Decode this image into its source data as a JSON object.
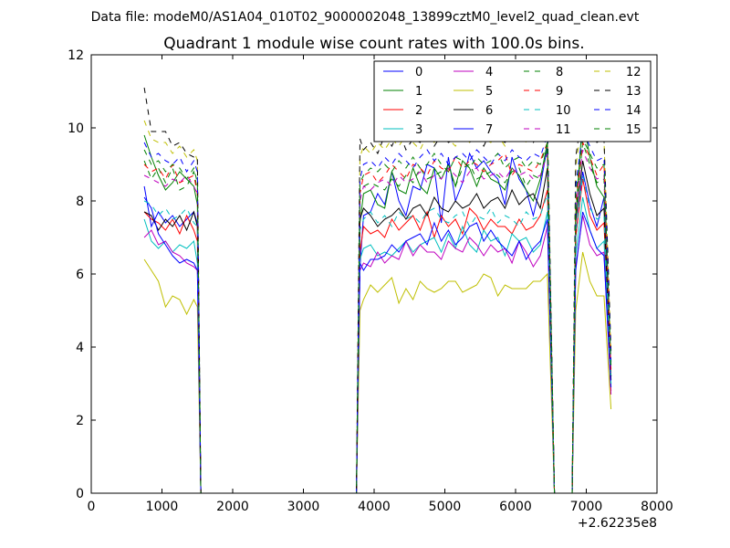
{
  "suptitle": "Data file: modeM0/AS1A04_010T02_9000002048_13899cztM0_level2_quad_clean.evt",
  "chart_data": {
    "type": "line",
    "title": "Quadrant 1 module wise count rates with 100.0s bins.",
    "xlabel": "",
    "ylabel": "",
    "x_offset_label": "+2.62235e8",
    "xlim": [
      0,
      8000
    ],
    "ylim": [
      0,
      12
    ],
    "xticks": [
      0,
      1000,
      2000,
      3000,
      4000,
      5000,
      6000,
      7000,
      8000
    ],
    "xtick_labels": [
      "0",
      "1000",
      "2000",
      "3000",
      "4000",
      "5000",
      "6000",
      "7000",
      "8000"
    ],
    "yticks": [
      0,
      2,
      4,
      6,
      8,
      10,
      12
    ],
    "ytick_labels": [
      "0",
      "2",
      "4",
      "6",
      "8",
      "10",
      "12"
    ],
    "grid": false,
    "legend_position": "top-right",
    "x": [
      750,
      850,
      950,
      1050,
      1150,
      1250,
      1350,
      1450,
      1500,
      1550,
      1600,
      3600,
      3650,
      3700,
      3750,
      3800,
      3850,
      3950,
      4050,
      4150,
      4250,
      4350,
      4450,
      4550,
      4650,
      4750,
      4850,
      4950,
      5050,
      5150,
      5250,
      5350,
      5450,
      5550,
      5650,
      5750,
      5850,
      5950,
      6050,
      6150,
      6250,
      6350,
      6450,
      6550,
      6620,
      6650,
      6700,
      6720,
      6800,
      6850,
      6950,
      7050,
      7150,
      7250,
      7350
    ],
    "series": [
      {
        "name": "0",
        "color": "#0000ff",
        "dash": "solid",
        "values": [
          8.4,
          7.3,
          7.7,
          7.4,
          7.6,
          7.3,
          7.5,
          7.7,
          7.4,
          0,
          0,
          0,
          0,
          0,
          0,
          6.2,
          7.6,
          7.7,
          8.2,
          7.9,
          8.8,
          8.0,
          7.6,
          8.4,
          8.3,
          9.0,
          8.9,
          7.4,
          9.2,
          8.0,
          8.5,
          9.3,
          8.9,
          9.1,
          8.8,
          8.6,
          7.9,
          9.2,
          8.6,
          8.3,
          7.6,
          8.4,
          9.5,
          0,
          0,
          0,
          0,
          0,
          0,
          7.0,
          8.8,
          7.9,
          7.3,
          8.1,
          3.2
        ]
      },
      {
        "name": "1",
        "color": "#008000",
        "dash": "solid",
        "values": [
          9.8,
          9.2,
          8.7,
          8.3,
          8.5,
          8.8,
          8.6,
          8.4,
          7.9,
          0,
          0,
          0,
          0,
          0,
          0,
          7.4,
          8.2,
          8.3,
          7.9,
          7.8,
          8.8,
          8.3,
          8.2,
          8.9,
          8.4,
          8.2,
          8.9,
          8.6,
          9.0,
          8.4,
          9.1,
          8.9,
          8.4,
          8.9,
          8.6,
          8.5,
          8.3,
          8.9,
          8.7,
          8.3,
          8.0,
          8.6,
          9.6,
          0,
          0,
          0,
          0,
          0,
          0,
          7.6,
          10.3,
          9.2,
          8.4,
          8.1,
          3.2
        ]
      },
      {
        "name": "2",
        "color": "#ff0000",
        "dash": "solid",
        "values": [
          7.7,
          7.5,
          7.4,
          7.2,
          7.5,
          7.1,
          7.6,
          7.2,
          6.9,
          0,
          0,
          0,
          0,
          0,
          0,
          6.6,
          7.3,
          7.1,
          7.2,
          7.0,
          7.5,
          7.2,
          7.4,
          7.6,
          7.2,
          7.7,
          7.0,
          7.6,
          7.3,
          7.5,
          7.1,
          7.8,
          7.6,
          7.2,
          7.5,
          7.3,
          7.3,
          7.1,
          7.5,
          7.2,
          7.3,
          7.6,
          8.3,
          0,
          0,
          0,
          0,
          0,
          0,
          7.0,
          8.6,
          7.6,
          7.2,
          7.4,
          2.8
        ]
      },
      {
        "name": "3",
        "color": "#00bfbf",
        "dash": "solid",
        "values": [
          7.5,
          6.9,
          6.7,
          6.9,
          6.6,
          6.8,
          6.7,
          6.9,
          6.3,
          0,
          0,
          0,
          0,
          0,
          0,
          6.4,
          6.7,
          6.8,
          6.5,
          6.6,
          6.5,
          6.7,
          6.9,
          6.6,
          6.8,
          6.9,
          7.0,
          6.6,
          7.1,
          6.7,
          7.3,
          6.8,
          6.6,
          7.2,
          6.9,
          7.0,
          6.5,
          7.1,
          6.9,
          7.0,
          6.6,
          6.8,
          7.7,
          0,
          0,
          0,
          0,
          0,
          0,
          6.5,
          8.1,
          7.2,
          6.7,
          6.9,
          3.0
        ]
      },
      {
        "name": "4",
        "color": "#bf00bf",
        "dash": "solid",
        "values": [
          7.0,
          7.2,
          6.8,
          6.9,
          6.6,
          6.5,
          6.3,
          6.2,
          6.1,
          0,
          0,
          0,
          0,
          0,
          0,
          6.1,
          6.3,
          6.2,
          6.6,
          6.3,
          6.5,
          6.4,
          6.9,
          6.5,
          6.8,
          6.6,
          6.6,
          6.4,
          6.9,
          6.7,
          6.6,
          7.0,
          6.8,
          6.5,
          6.8,
          6.6,
          6.7,
          6.3,
          6.9,
          6.6,
          6.2,
          6.5,
          7.3,
          0,
          0,
          0,
          0,
          0,
          0,
          6.2,
          7.6,
          6.8,
          6.5,
          6.6,
          2.7
        ]
      },
      {
        "name": "5",
        "color": "#bfbf00",
        "dash": "solid",
        "values": [
          6.4,
          6.1,
          5.8,
          5.1,
          5.4,
          5.3,
          4.9,
          5.3,
          5.1,
          0,
          0,
          0,
          0,
          0,
          0,
          5.0,
          5.3,
          5.7,
          5.5,
          5.7,
          5.9,
          5.2,
          5.6,
          5.3,
          5.8,
          5.6,
          5.5,
          5.6,
          5.8,
          5.8,
          5.5,
          5.6,
          5.7,
          6.0,
          5.9,
          5.4,
          5.7,
          5.6,
          5.6,
          5.6,
          5.8,
          5.8,
          6.0,
          0,
          0,
          0,
          0,
          0,
          0,
          5.0,
          6.6,
          5.8,
          5.4,
          5.4,
          2.3
        ]
      },
      {
        "name": "6",
        "color": "#000000",
        "dash": "solid",
        "values": [
          7.7,
          7.6,
          7.2,
          7.5,
          7.3,
          7.6,
          7.2,
          7.7,
          7.3,
          0,
          0,
          0,
          0,
          0,
          0,
          7.5,
          7.8,
          7.6,
          7.3,
          7.5,
          7.6,
          7.8,
          7.5,
          7.8,
          7.9,
          7.6,
          8.1,
          7.8,
          7.7,
          8.0,
          7.8,
          7.9,
          8.2,
          7.8,
          8.0,
          8.1,
          7.8,
          8.3,
          7.9,
          8.1,
          8.2,
          7.8,
          8.9,
          0,
          0,
          0,
          0,
          0,
          0,
          7.4,
          9.1,
          8.2,
          7.6,
          7.8,
          3.1
        ]
      },
      {
        "name": "7",
        "color": "#0000ff",
        "dash": "solid",
        "values": [
          8.1,
          7.8,
          7.1,
          6.8,
          6.5,
          6.3,
          6.4,
          6.3,
          6.1,
          0,
          0,
          0,
          0,
          0,
          0,
          6.3,
          6.1,
          6.4,
          6.4,
          6.5,
          6.8,
          6.6,
          6.9,
          7.0,
          7.1,
          6.8,
          7.4,
          6.9,
          7.2,
          6.8,
          7.0,
          7.3,
          7.4,
          6.9,
          7.2,
          6.9,
          6.7,
          6.5,
          6.9,
          6.4,
          6.7,
          6.9,
          7.5,
          0,
          0,
          0,
          0,
          0,
          0,
          6.1,
          7.7,
          7.2,
          6.7,
          6.5,
          2.9
        ]
      },
      {
        "name": "8",
        "color": "#008000",
        "dash": "dashed",
        "values": [
          9.1,
          8.6,
          8.9,
          8.5,
          8.9,
          8.3,
          8.4,
          8.8,
          8.3,
          0,
          0,
          0,
          0,
          0,
          0,
          8.3,
          8.4,
          8.5,
          8.4,
          8.3,
          8.6,
          8.4,
          8.7,
          8.5,
          8.9,
          8.6,
          8.7,
          8.8,
          8.9,
          8.4,
          8.9,
          9.0,
          8.6,
          8.7,
          8.8,
          8.7,
          8.5,
          8.8,
          8.9,
          8.4,
          8.7,
          8.6,
          9.4,
          0,
          0,
          0,
          0,
          0,
          0,
          7.6,
          9.6,
          9.0,
          8.5,
          8.6,
          3.4
        ]
      },
      {
        "name": "9",
        "color": "#ff0000",
        "dash": "dashed",
        "values": [
          9.0,
          8.8,
          8.9,
          8.6,
          9.0,
          8.5,
          8.6,
          8.7,
          8.2,
          0,
          0,
          0,
          0,
          0,
          0,
          8.2,
          8.7,
          8.8,
          8.5,
          8.7,
          9.0,
          8.8,
          8.6,
          9.0,
          8.9,
          8.7,
          9.1,
          8.9,
          8.8,
          9.2,
          8.9,
          9.1,
          9.0,
          8.8,
          9.0,
          9.1,
          9.3,
          8.7,
          9.0,
          8.9,
          8.8,
          9.1,
          9.6,
          0,
          0,
          0,
          0,
          0,
          0,
          7.9,
          9.6,
          9.2,
          8.7,
          9.0,
          3.3
        ]
      },
      {
        "name": "10",
        "color": "#00bfbf",
        "dash": "dashed",
        "values": [
          8.0,
          7.9,
          7.6,
          7.8,
          7.5,
          7.6,
          7.8,
          7.4,
          7.3,
          0,
          0,
          0,
          0,
          0,
          0,
          7.2,
          7.5,
          7.7,
          7.4,
          7.6,
          7.3,
          7.7,
          7.5,
          7.6,
          7.4,
          7.7,
          7.8,
          7.5,
          7.4,
          7.6,
          7.7,
          7.3,
          7.6,
          7.5,
          7.8,
          7.4,
          7.6,
          7.5,
          7.3,
          7.7,
          7.5,
          7.6,
          8.2,
          0,
          0,
          0,
          0,
          0,
          0,
          7.1,
          8.7,
          7.8,
          7.5,
          7.6,
          3.0
        ]
      },
      {
        "name": "11",
        "color": "#bf00bf",
        "dash": "dashed",
        "values": [
          8.7,
          8.6,
          8.5,
          8.4,
          8.6,
          8.5,
          8.7,
          8.4,
          8.2,
          0,
          0,
          0,
          0,
          0,
          0,
          8.0,
          8.4,
          8.3,
          8.5,
          8.6,
          8.4,
          8.7,
          8.5,
          8.6,
          8.8,
          8.5,
          8.7,
          8.6,
          8.9,
          8.7,
          8.5,
          8.8,
          8.9,
          8.6,
          8.7,
          8.8,
          8.6,
          8.9,
          8.7,
          8.8,
          8.6,
          8.7,
          9.3,
          0,
          0,
          0,
          0,
          0,
          0,
          7.8,
          9.4,
          8.9,
          8.6,
          8.7,
          3.3
        ]
      },
      {
        "name": "12",
        "color": "#bfbf00",
        "dash": "dashed",
        "values": [
          10.2,
          9.7,
          9.6,
          9.6,
          9.3,
          9.5,
          9.2,
          9.4,
          9.1,
          0,
          0,
          0,
          0,
          0,
          0,
          9.2,
          9.5,
          9.3,
          9.6,
          9.4,
          9.7,
          9.5,
          9.8,
          9.6,
          9.4,
          9.8,
          9.6,
          9.9,
          9.7,
          9.5,
          9.8,
          9.6,
          9.9,
          9.7,
          9.6,
          9.8,
          9.5,
          9.7,
          9.9,
          9.6,
          9.8,
          9.7,
          10.1,
          0,
          0,
          0,
          0,
          0,
          0,
          8.9,
          10.4,
          10.0,
          9.6,
          9.7,
          3.8
        ]
      },
      {
        "name": "13",
        "color": "#000000",
        "dash": "dashed",
        "values": [
          11.1,
          9.9,
          9.9,
          9.9,
          9.5,
          9.6,
          9.3,
          9.2,
          9.2,
          0,
          0,
          0,
          0,
          0,
          0,
          9.7,
          9.4,
          9.6,
          9.3,
          9.8,
          9.5,
          9.9,
          9.4,
          9.7,
          9.6,
          9.9,
          9.5,
          9.8,
          9.6,
          9.7,
          9.9,
          9.6,
          9.8,
          9.5,
          9.9,
          9.7,
          9.6,
          9.8,
          9.7,
          9.9,
          9.6,
          9.8,
          10.2,
          0,
          0,
          0,
          0,
          0,
          0,
          9.2,
          10.5,
          9.9,
          9.6,
          9.7,
          3.9
        ]
      },
      {
        "name": "14",
        "color": "#0000ff",
        "dash": "dashed",
        "values": [
          9.6,
          9.2,
          9.3,
          9.1,
          9.0,
          9.2,
          8.8,
          9.1,
          8.8,
          0,
          0,
          0,
          0,
          0,
          0,
          8.6,
          9.0,
          9.1,
          8.9,
          9.2,
          9.0,
          9.3,
          9.1,
          8.9,
          9.2,
          9.4,
          9.1,
          9.3,
          9.0,
          9.2,
          9.3,
          9.1,
          9.4,
          9.2,
          9.0,
          9.3,
          9.1,
          9.4,
          9.2,
          9.1,
          9.3,
          9.2,
          9.8,
          0,
          0,
          0,
          0,
          0,
          0,
          8.4,
          9.9,
          9.5,
          9.1,
          9.2,
          3.6
        ]
      },
      {
        "name": "15",
        "color": "#008000",
        "dash": "dashed",
        "values": [
          9.4,
          9.0,
          9.1,
          8.8,
          9.0,
          8.9,
          8.6,
          8.9,
          8.5,
          0,
          0,
          0,
          0,
          0,
          0,
          8.5,
          8.7,
          8.9,
          8.8,
          9.0,
          8.8,
          9.1,
          8.9,
          9.2,
          8.9,
          9.0,
          9.3,
          9.0,
          8.8,
          9.2,
          9.1,
          8.9,
          9.2,
          9.0,
          9.1,
          9.3,
          8.9,
          9.1,
          9.2,
          8.9,
          9.1,
          9.0,
          9.6,
          0,
          0,
          0,
          0,
          0,
          0,
          8.2,
          9.7,
          9.3,
          8.9,
          9.0,
          3.5
        ]
      }
    ]
  }
}
